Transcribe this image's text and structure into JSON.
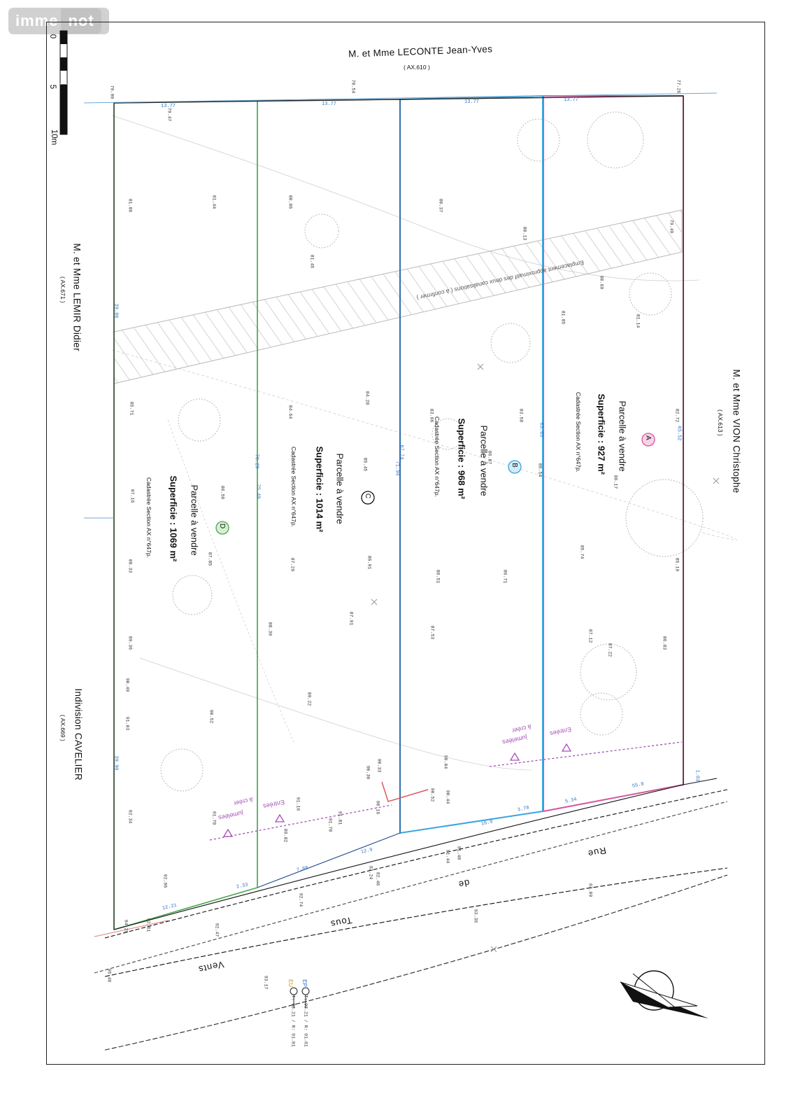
{
  "watermark": {
    "part1": "imme",
    "part2": "not"
  },
  "scale": {
    "zero": "0",
    "five": "5",
    "ten": "10m"
  },
  "neighbors": {
    "top": {
      "name": "M. et Mme LECONTE Jean-Yves",
      "ref": "( AX.610 )"
    },
    "left": {
      "name": "M. et Mme LEMIR Didier",
      "ref": "( AX.671 )"
    },
    "right": {
      "name": "M. et Mme VION Christophe",
      "ref": "( AX.613 )"
    },
    "bottom_left": {
      "name": "Indivision CAVELIER",
      "ref": "( AX.669 )"
    }
  },
  "street": {
    "word1": "Rue",
    "word2": "de",
    "word3": "Tous",
    "word4": "Vents"
  },
  "lots": [
    {
      "letter": "A",
      "title": "Parcelle à vendre",
      "area": "Superficie : 927 m²",
      "cadastre": "Cadastrée Section AX n°647p.",
      "color": "#d5569f"
    },
    {
      "letter": "B",
      "title": "Parcelle à vendre",
      "area": "Superficie : 968 m²",
      "cadastre": "Cadastrée Section AX n°647p.",
      "color": "#3aa4dd"
    },
    {
      "letter": "C",
      "title": "Parcelle à vendre",
      "area": "Superficie : 1014 m²",
      "cadastre": "Cadastrée Section AX n°647p.",
      "color": "#b27a3e"
    },
    {
      "letter": "D",
      "title": "Parcelle à vendre",
      "area": "Superficie : 1069 m²",
      "cadastre": "Cadastrée Section AX n°647p.",
      "color": "#4aa84d"
    }
  ],
  "dimensions": {
    "top_widths": [
      "13.77",
      "13.77",
      "13.77",
      "13.77"
    ],
    "long_sides": [
      "65.52",
      "63.65",
      "67.74",
      "71.94",
      "75.49",
      "70.29",
      "39.86",
      "39.90"
    ],
    "front_widths": [
      "5.34",
      "3.78",
      "16.9",
      "12.9",
      "7.88",
      "2.33",
      "12.21",
      "1.03",
      "55.8"
    ]
  },
  "entries": [
    {
      "line1": "Entrées",
      "line2": "jumelées",
      "line3": "à créer"
    },
    {
      "line1": "Entrées",
      "line2": "jumelées",
      "line3": "à créer"
    }
  ],
  "easement": {
    "text": "Emplacement approximatif des deux canalisations ( à confirmer )"
  },
  "networks": {
    "ep": "EP",
    "eu": "EU",
    "ep_vals": "T: 93.21 / R: 91.61",
    "eu_vals": "T: 93.21 / R: 91.01"
  },
  "spot_heights": [
    "79.90",
    "78.54",
    "77.26",
    "79.47",
    "81.86",
    "81.44",
    "80.86",
    "80.37",
    "80.13",
    "79.49",
    "81.45",
    "80.69",
    "81.85",
    "81.14",
    "84.28",
    "84.64",
    "85.71",
    "83.96",
    "83.58",
    "82.72",
    "86.17",
    "85.45",
    "86.87",
    "86.54",
    "86.50",
    "87.16",
    "87.85",
    "88.33",
    "87.29",
    "86.91",
    "86.51",
    "86.71",
    "85.74",
    "85.19",
    "88.39",
    "87.91",
    "87.53",
    "87.12",
    "87.22",
    "86.83",
    "89.36",
    "89.22",
    "90.49",
    "90.33",
    "90.04",
    "90.52",
    "90.44",
    "90.30",
    "90.16",
    "89.82",
    "90.52",
    "91.16",
    "91.03",
    "92.34",
    "91.78",
    "91.81",
    "91.78",
    "92.96",
    "91.44",
    "91.48",
    "92.24",
    "93.09",
    "92.46",
    "93.36",
    "93.17",
    "92.74",
    "92.47",
    "94.25",
    "92.61",
    "95.46"
  ],
  "colors": {
    "lot_a": "#d5569f",
    "lot_b": "#3aa4dd",
    "lot_d": "#4aa84d",
    "dims": "#2a73c8",
    "entries": "#a64fb6",
    "easement": "#b9b9b9"
  },
  "icons": [
    "north-arrow-icon",
    "scale-bar-icon",
    "entry-triangle-icon",
    "manhole-icon",
    "tree-icon"
  ]
}
